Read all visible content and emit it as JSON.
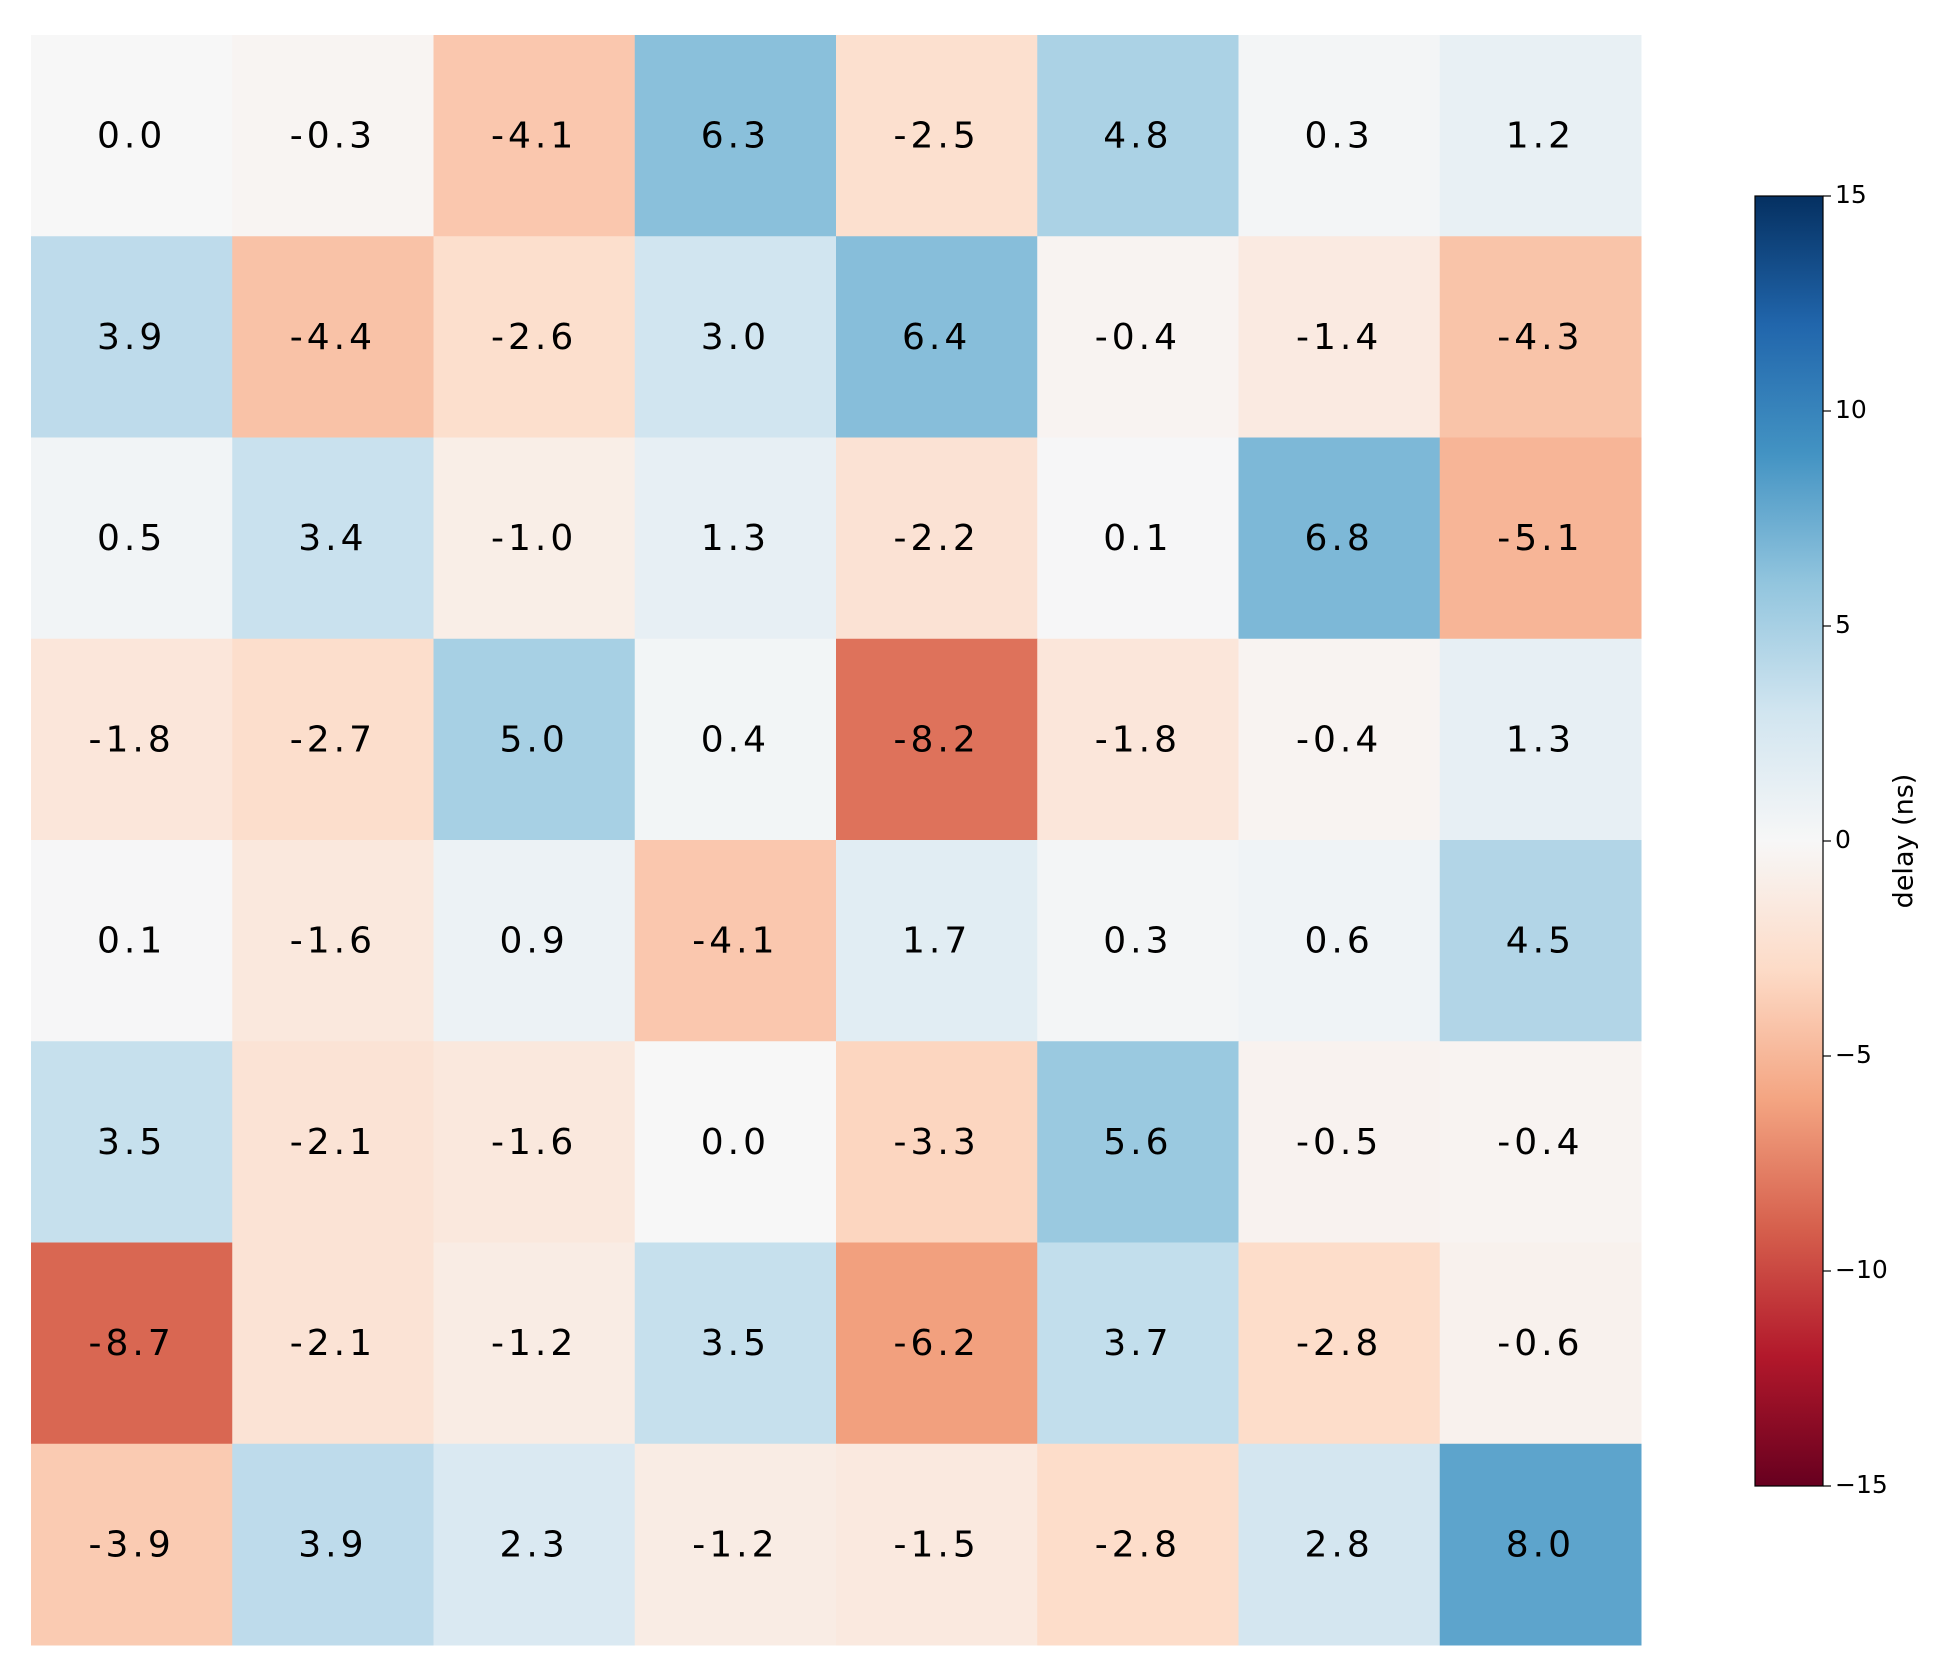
{
  "chart_data": {
    "type": "heatmap",
    "values": [
      [
        0.0,
        -0.3,
        -4.1,
        6.3,
        -2.5,
        4.8,
        0.3,
        1.2
      ],
      [
        3.9,
        -4.4,
        -2.6,
        3.0,
        6.4,
        -0.4,
        -1.4,
        -4.3
      ],
      [
        0.5,
        3.4,
        -1.0,
        1.3,
        -2.2,
        0.1,
        6.8,
        -5.1
      ],
      [
        -1.8,
        -2.7,
        5.0,
        0.4,
        -8.2,
        -1.8,
        -0.4,
        1.3
      ],
      [
        0.1,
        -1.6,
        0.9,
        -4.1,
        1.7,
        0.3,
        0.6,
        4.5
      ],
      [
        3.5,
        -2.1,
        -1.6,
        0.0,
        -3.3,
        5.6,
        -0.5,
        -0.4
      ],
      [
        -8.7,
        -2.1,
        -1.2,
        3.5,
        -6.2,
        3.7,
        -2.8,
        -0.6
      ],
      [
        -3.9,
        3.9,
        2.3,
        -1.2,
        -1.5,
        -2.8,
        2.8,
        8.0
      ]
    ],
    "value_labels": [
      [
        "0.0",
        "-0.3",
        "-4.1",
        "6.3",
        "-2.5",
        "4.8",
        "0.3",
        "1.2"
      ],
      [
        "3.9",
        "-4.4",
        "-2.6",
        "3.0",
        "6.4",
        "-0.4",
        "-1.4",
        "-4.3"
      ],
      [
        "0.5",
        "3.4",
        "-1.0",
        "1.3",
        "-2.2",
        "0.1",
        "6.8",
        "-5.1"
      ],
      [
        "-1.8",
        "-2.7",
        "5.0",
        "0.4",
        "-8.2",
        "-1.8",
        "-0.4",
        "1.3"
      ],
      [
        "0.1",
        "-1.6",
        "0.9",
        "-4.1",
        "1.7",
        "0.3",
        "0.6",
        "4.5"
      ],
      [
        "3.5",
        "-2.1",
        "-1.6",
        "0.0",
        "-3.3",
        "5.6",
        "-0.5",
        "-0.4"
      ],
      [
        "-8.7",
        "-2.1",
        "-1.2",
        "3.5",
        "-6.2",
        "3.7",
        "-2.8",
        "-0.6"
      ],
      [
        "-3.9",
        "3.9",
        "2.3",
        "-1.2",
        "-1.5",
        "-2.8",
        "2.8",
        "8.0"
      ]
    ],
    "colormap": [
      "#67001f",
      "#b2182b",
      "#d6604d",
      "#f4a582",
      "#fddbc7",
      "#f7f7f7",
      "#d1e5f0",
      "#92c5de",
      "#4393c3",
      "#2166ac",
      "#053061"
    ],
    "colorbar_label": "delay (ns)",
    "clim": [
      -15,
      15
    ],
    "cticks": [
      {
        "value": -15,
        "label": "−15"
      },
      {
        "value": -10,
        "label": "−10"
      },
      {
        "value": -5,
        "label": "−5"
      },
      0,
      5,
      10,
      15
    ]
  }
}
